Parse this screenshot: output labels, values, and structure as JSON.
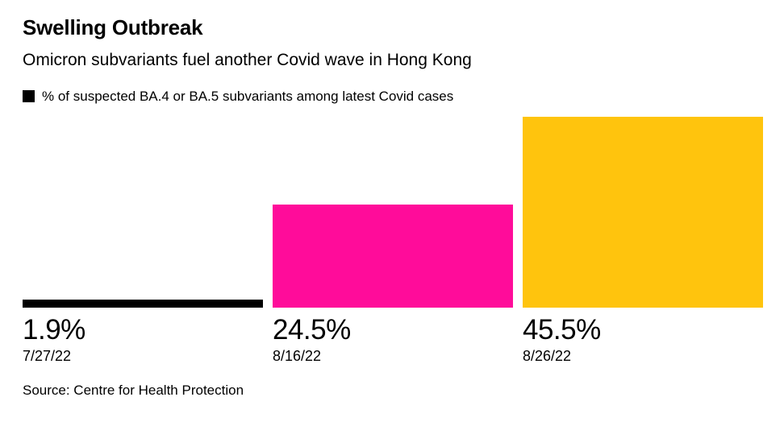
{
  "header": {
    "title": "Swelling Outbreak",
    "subtitle": "Omicron subvariants fuel another Covid wave in Hong Kong"
  },
  "legend": {
    "label": "% of suspected BA.4 or BA.5 subvariants among latest Covid cases",
    "swatch_color": "#000000"
  },
  "source": "Source: Centre for Health Protection",
  "chart_data": {
    "type": "bar",
    "title": "Swelling Outbreak",
    "subtitle": "Omicron subvariants fuel another Covid wave in Hong Kong",
    "series_label": "% of suspected BA.4 or BA.5 subvariants among latest Covid cases",
    "categories": [
      "7/27/22",
      "8/16/22",
      "8/26/22"
    ],
    "values": [
      1.9,
      24.5,
      45.5
    ],
    "value_labels": [
      "1.9%",
      "24.5%",
      "45.5%"
    ],
    "bar_colors": [
      "#000000",
      "#ff0c9a",
      "#ffc40d"
    ],
    "xlabel": "",
    "ylabel": "",
    "ylim": [
      0,
      45.5
    ],
    "grid": false,
    "legend_position": "top",
    "source": "Source: Centre for Health Protection"
  }
}
